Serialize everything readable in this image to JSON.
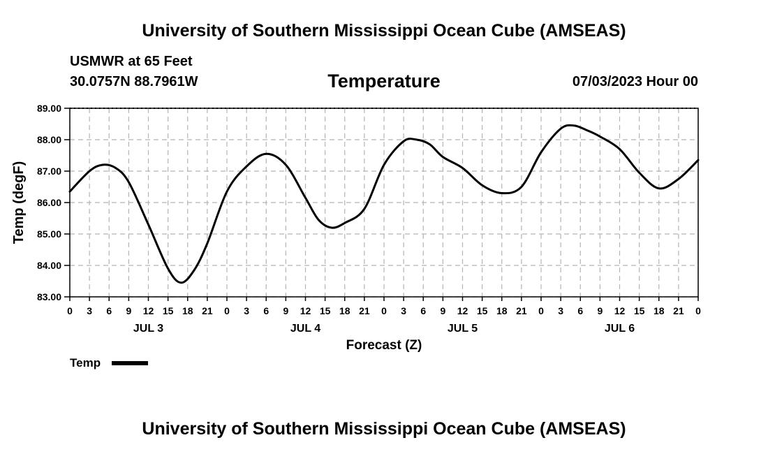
{
  "page": {
    "top_title": "University of Southern Mississippi Ocean Cube (AMSEAS)",
    "bottom_title": "University of Southern Mississippi Ocean Cube (AMSEAS)",
    "station": "USMWR at 65 Feet",
    "coords": "30.0757N  88.7961W",
    "variable_title": "Temperature",
    "datetime": "07/03/2023 Hour 00"
  },
  "chart_data": {
    "type": "line",
    "title": "Temperature",
    "xlabel": "Forecast (Z)",
    "ylabel": "Temp (degF)",
    "ylim": [
      83.0,
      89.0
    ],
    "xlim": [
      0,
      96
    ],
    "y_ticks": [
      "83.00",
      "84.00",
      "85.00",
      "86.00",
      "87.00",
      "88.00",
      "89.00"
    ],
    "y_tick_values": [
      83,
      84,
      85,
      86,
      87,
      88,
      89
    ],
    "x_tick_labels": [
      "0",
      "3",
      "6",
      "9",
      "12",
      "15",
      "18",
      "21",
      "0",
      "3",
      "6",
      "9",
      "12",
      "15",
      "18",
      "21",
      "0",
      "3",
      "6",
      "9",
      "12",
      "15",
      "18",
      "21",
      "0",
      "3",
      "6",
      "9",
      "12",
      "15",
      "18",
      "21",
      "0"
    ],
    "day_labels": [
      "JUL 3",
      "JUL 4",
      "JUL 5",
      "JUL 6"
    ],
    "grid": true,
    "legend_position": "bottom-left",
    "series": [
      {
        "name": "Temp",
        "color": "#000000",
        "x": [
          0,
          3,
          5,
          7,
          9,
          12,
          15,
          17,
          19,
          21,
          24,
          27,
          30,
          33,
          36,
          38,
          40,
          42,
          45,
          48,
          51,
          53,
          55,
          57,
          60,
          63,
          66,
          69,
          72,
          75,
          77,
          79,
          81,
          84,
          87,
          90,
          93,
          96
        ],
        "values": [
          86.35,
          87.0,
          87.2,
          87.1,
          86.65,
          85.3,
          83.9,
          83.45,
          83.85,
          84.7,
          86.35,
          87.15,
          87.55,
          87.2,
          86.15,
          85.45,
          85.2,
          85.35,
          85.8,
          87.2,
          87.95,
          88.0,
          87.85,
          87.45,
          87.1,
          86.55,
          86.3,
          86.5,
          87.6,
          88.35,
          88.45,
          88.3,
          88.1,
          87.7,
          86.95,
          86.45,
          86.75,
          87.35
        ]
      }
    ]
  }
}
